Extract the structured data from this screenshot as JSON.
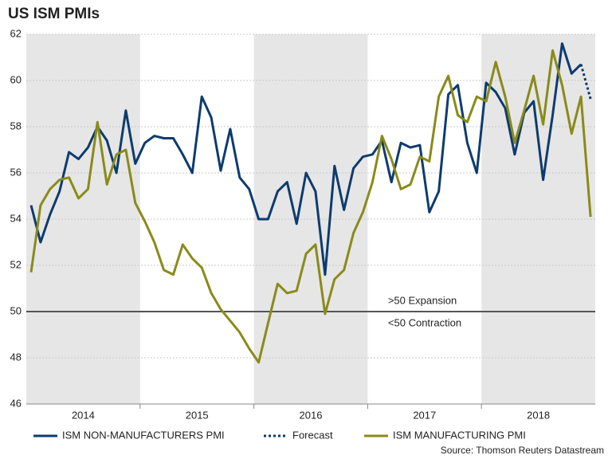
{
  "chart_data": {
    "type": "line",
    "title": "US ISM PMIs",
    "categories": [
      "2014",
      null,
      null,
      null,
      null,
      null,
      null,
      null,
      null,
      null,
      null,
      null,
      "2015",
      null,
      null,
      null,
      null,
      null,
      null,
      null,
      null,
      null,
      null,
      null,
      "2016",
      null,
      null,
      null,
      null,
      null,
      null,
      null,
      null,
      null,
      null,
      null,
      "2017",
      null,
      null,
      null,
      null,
      null,
      null,
      null,
      null,
      null,
      null,
      null,
      "2018",
      null,
      null,
      null,
      null,
      null,
      null,
      null,
      null,
      null,
      null,
      null
    ],
    "series": [
      {
        "name": "ISM NON-MANUFACTURERS PMI",
        "color": "#0d3b6e",
        "dashed": false,
        "values": [
          54.6,
          53.0,
          54.2,
          55.2,
          56.9,
          56.6,
          57.1,
          58.0,
          57.4,
          56.0,
          58.7,
          56.4,
          57.3,
          57.6,
          57.5,
          57.5,
          56.8,
          56.0,
          59.3,
          58.4,
          56.1,
          57.9,
          55.8,
          55.3,
          54.0,
          54.0,
          55.2,
          55.6,
          53.8,
          56.0,
          55.2,
          51.6,
          56.3,
          54.4,
          56.2,
          56.7,
          56.8,
          57.4,
          55.6,
          57.3,
          57.1,
          57.2,
          54.3,
          55.2,
          59.4,
          59.8,
          57.3,
          56.0,
          59.9,
          59.5,
          58.8,
          56.8,
          58.6,
          59.1,
          55.7,
          58.5,
          61.6,
          60.3,
          60.7,
          null
        ]
      },
      {
        "name": "Forecast",
        "color": "#0d3b6e",
        "dashed": true,
        "values": [
          null,
          null,
          null,
          null,
          null,
          null,
          null,
          null,
          null,
          null,
          null,
          null,
          null,
          null,
          null,
          null,
          null,
          null,
          null,
          null,
          null,
          null,
          null,
          null,
          null,
          null,
          null,
          null,
          null,
          null,
          null,
          null,
          null,
          null,
          null,
          null,
          null,
          null,
          null,
          null,
          null,
          null,
          null,
          null,
          null,
          null,
          null,
          null,
          null,
          null,
          null,
          null,
          null,
          null,
          null,
          null,
          null,
          null,
          60.7,
          59.2
        ]
      },
      {
        "name": "ISM MANUFACTURING PMI",
        "color": "#8a8a1a",
        "dashed": false,
        "values": [
          51.7,
          54.6,
          55.3,
          55.7,
          55.8,
          54.9,
          55.3,
          58.2,
          55.5,
          56.8,
          57.0,
          54.7,
          53.9,
          53.0,
          51.8,
          51.6,
          52.9,
          52.3,
          51.9,
          50.8,
          50.1,
          49.6,
          49.1,
          48.4,
          47.8,
          49.5,
          51.2,
          50.8,
          50.9,
          52.5,
          52.9,
          49.9,
          51.4,
          51.8,
          53.4,
          54.3,
          55.6,
          57.6,
          56.6,
          55.3,
          55.5,
          56.7,
          56.5,
          59.3,
          60.2,
          58.5,
          58.2,
          59.3,
          59.1,
          60.8,
          59.3,
          57.3,
          58.7,
          60.2,
          58.1,
          61.3,
          59.8,
          57.7,
          59.3,
          54.1
        ]
      }
    ],
    "ylim": [
      46,
      62
    ],
    "yticks": [
      46,
      48,
      50,
      52,
      54,
      56,
      58,
      60,
      62
    ],
    "grid": true,
    "shaded_years": true,
    "reference_line": 50,
    "annotations": [
      ">50 Expansion",
      "<50 Contraction"
    ],
    "source": "Source: Thomson Reuters Datastream"
  }
}
